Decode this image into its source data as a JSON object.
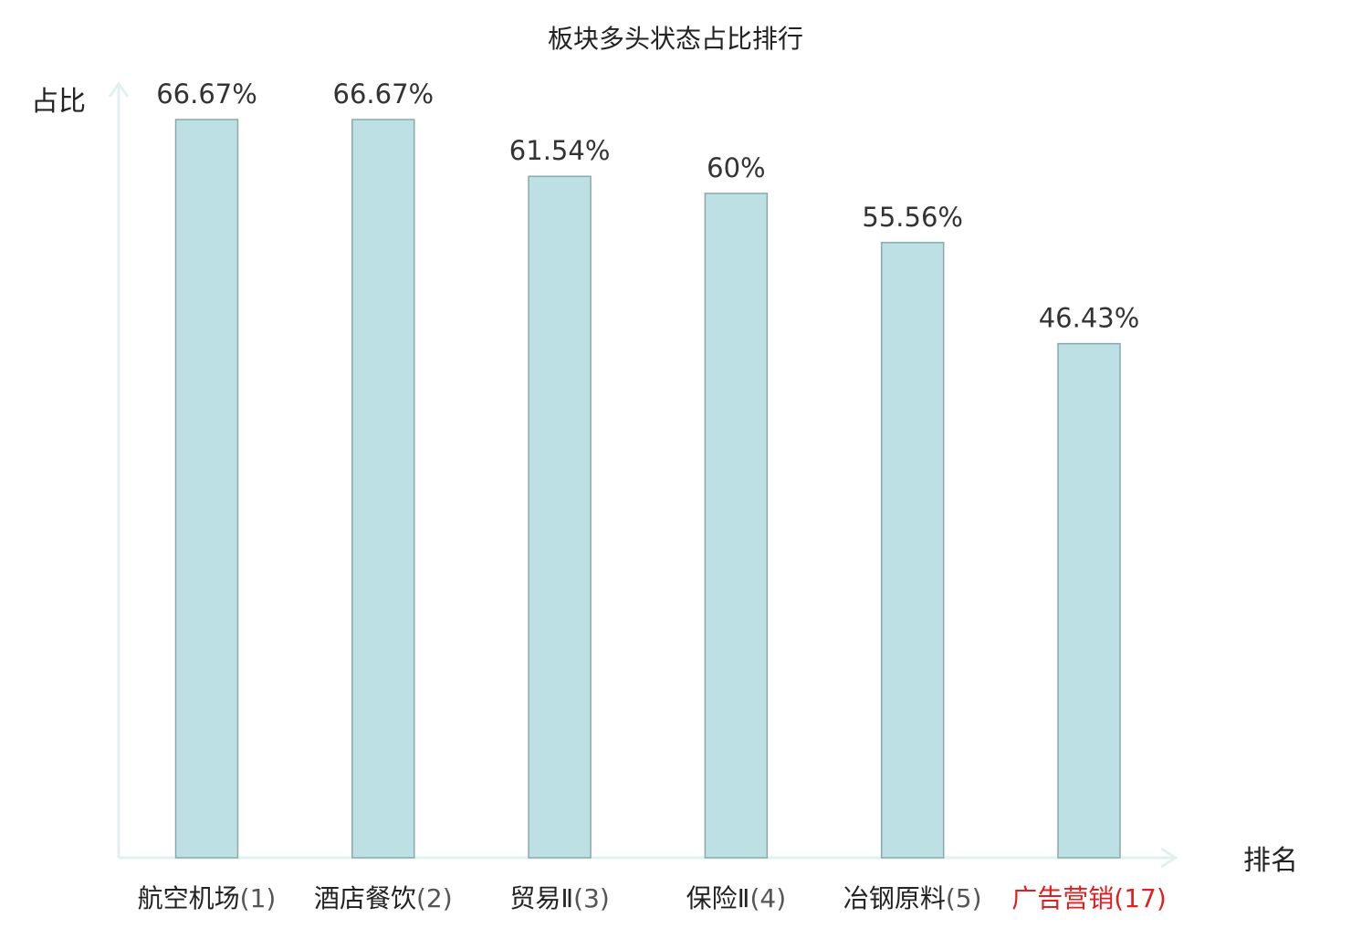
{
  "chart_data": {
    "type": "bar",
    "title": "板块多头状态占比排行",
    "xlabel": "排名",
    "ylabel": "占比",
    "ylim": [
      0,
      80
    ],
    "grid": false,
    "categories": [
      {
        "name": "航空机场",
        "rank": "(1)",
        "highlight": false
      },
      {
        "name": "酒店餐饮",
        "rank": "(2)",
        "highlight": false
      },
      {
        "name": "贸易Ⅱ",
        "rank": "(3)",
        "highlight": false
      },
      {
        "name": "保险Ⅱ",
        "rank": "(4)",
        "highlight": false
      },
      {
        "name": "冶钢原料",
        "rank": "(5)",
        "highlight": false
      },
      {
        "name": "广告营销",
        "rank": "(17)",
        "highlight": true
      }
    ],
    "values": [
      66.67,
      66.67,
      61.54,
      60,
      55.56,
      46.43
    ],
    "value_labels": [
      "66.67%",
      "66.67%",
      "61.54%",
      "60%",
      "55.56%",
      "46.43%"
    ],
    "colors": {
      "bar_fill": "#bce0e3",
      "bar_stroke": "#8aa9ab",
      "axis": "#e0f2ef",
      "highlight": "#e02020"
    }
  }
}
